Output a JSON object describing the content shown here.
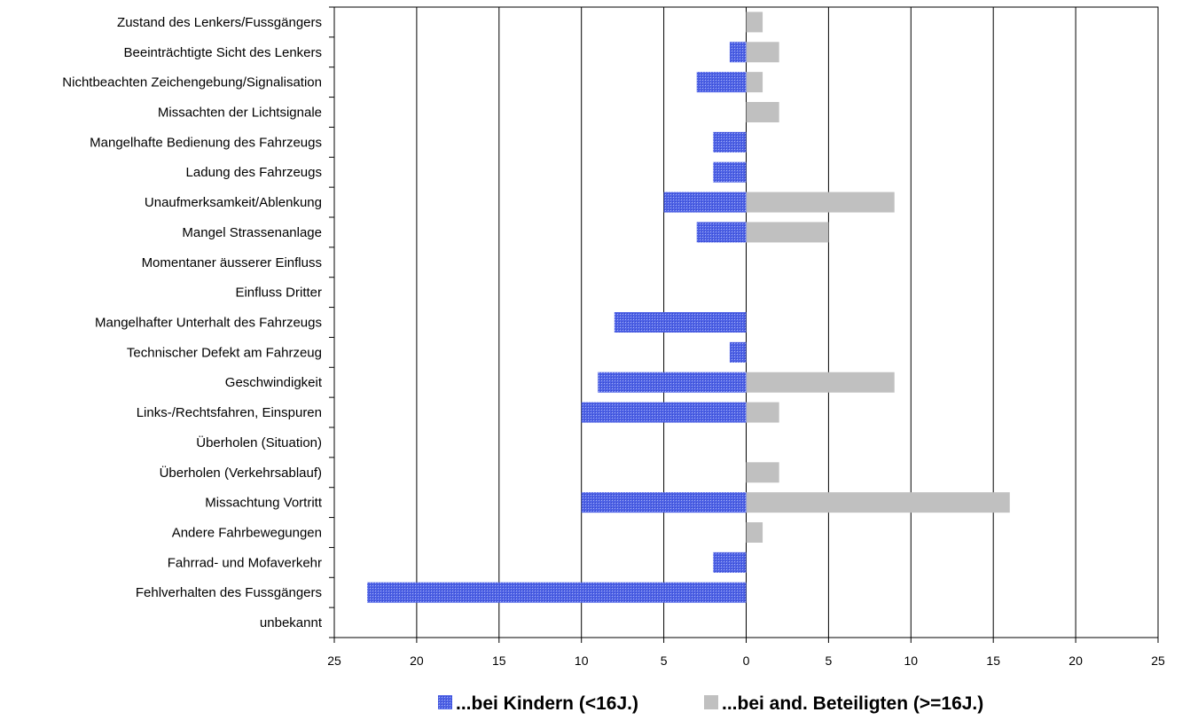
{
  "chart_data": {
    "type": "bar",
    "orientation": "horizontal",
    "layout": "diverging",
    "categories": [
      "Zustand des Lenkers/Fussgängers",
      "Beeinträchtigte Sicht des Lenkers",
      "Nichtbeachten Zeichengebung/Signalisation",
      "Missachten der Lichtsignale",
      "Mangelhafte Bedienung des Fahrzeugs",
      "Ladung des Fahrzeugs",
      "Unaufmerksamkeit/Ablenkung",
      "Mangel Strassenanlage",
      "Momentaner äusserer Einfluss",
      "Einfluss Dritter",
      "Mangelhafter Unterhalt des Fahrzeugs",
      "Technischer Defekt am Fahrzeug",
      "Geschwindigkeit",
      "Links-/Rechtsfahren, Einspuren",
      "Überholen (Situation)",
      "Überholen (Verkehrsablauf)",
      "Missachtung Vortritt",
      "Andere Fahrbewegungen",
      "Fahrrad- und Mofaverkehr",
      "Fehlverhalten des Fussgängers",
      "unbekannt"
    ],
    "series": [
      {
        "name": "...bei Kindern (<16J.)",
        "side": "left",
        "color": "#4f63e6",
        "values": [
          0,
          1,
          3,
          0,
          2,
          2,
          5,
          3,
          0,
          0,
          8,
          1,
          9,
          10,
          0,
          0,
          10,
          0,
          2,
          23,
          0
        ]
      },
      {
        "name": "...bei and. Beteiligten (>=16J.)",
        "side": "right",
        "color": "#c0c0c0",
        "values": [
          1,
          2,
          1,
          2,
          0,
          0,
          9,
          5,
          0,
          0,
          0,
          0,
          9,
          2,
          0,
          2,
          16,
          1,
          0,
          0,
          0
        ]
      }
    ],
    "xlim": [
      -25,
      25
    ],
    "x_ticks": [
      -25,
      -20,
      -15,
      -10,
      -5,
      0,
      5,
      10,
      15,
      20,
      25
    ],
    "x_tick_labels": [
      "25",
      "20",
      "15",
      "10",
      "5",
      "0",
      "5",
      "10",
      "15",
      "20",
      "25"
    ],
    "grid": "vertical",
    "legend_position": "bottom",
    "title": "",
    "xlabel": "",
    "ylabel": ""
  }
}
